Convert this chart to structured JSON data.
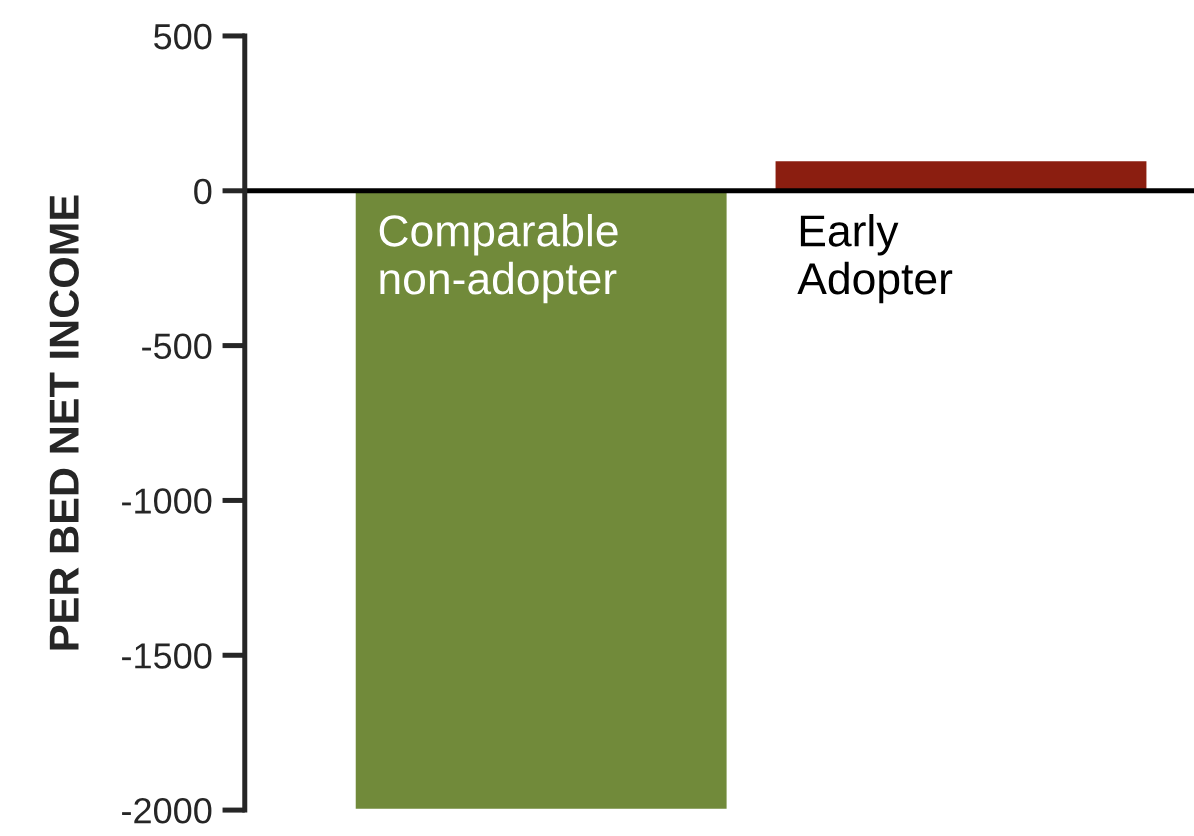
{
  "chart_data": {
    "type": "bar",
    "ylabel": "PER BED NET INCOME",
    "categories": [
      "Comparable\nnon-adopter",
      "Early\nAdopter"
    ],
    "values": [
      -2000,
      100
    ],
    "colors": [
      "#718a3a",
      "#8b1e10"
    ],
    "ylim": [
      -2000,
      500
    ],
    "yticks": [
      -2000,
      -1500,
      -1000,
      -500,
      0,
      500
    ],
    "grid": false
  }
}
